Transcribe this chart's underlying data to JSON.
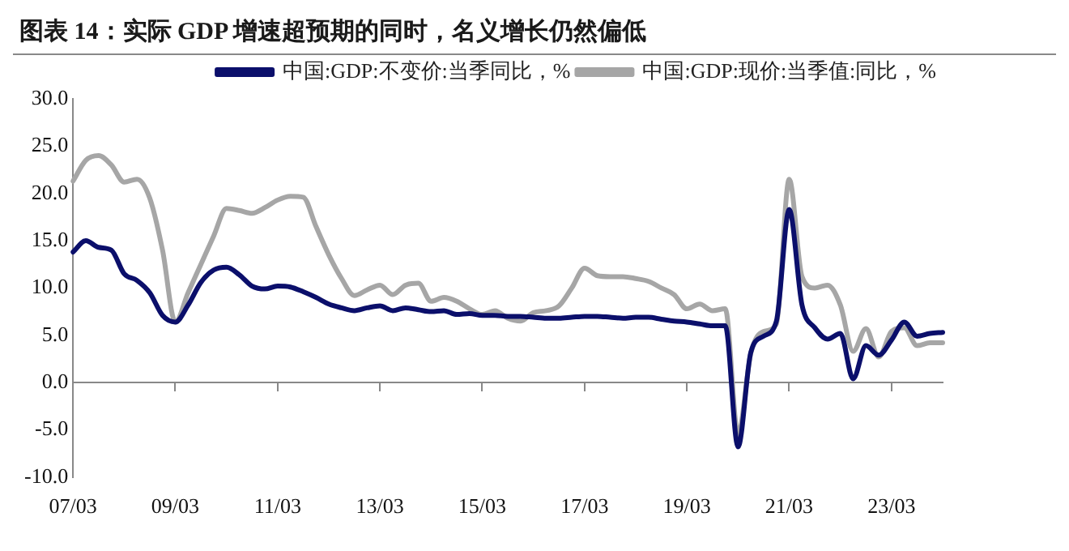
{
  "chart_data": {
    "type": "line",
    "title": "图表 14：实际 GDP 增速超预期的同时，名义增长仍然偏低",
    "categories": [
      "07/03",
      null,
      null,
      null,
      null,
      null,
      null,
      null,
      "09/03",
      null,
      null,
      null,
      null,
      null,
      null,
      null,
      "11/03",
      null,
      null,
      null,
      null,
      null,
      null,
      null,
      "13/03",
      null,
      null,
      null,
      null,
      null,
      null,
      null,
      "15/03",
      null,
      null,
      null,
      null,
      null,
      null,
      null,
      "17/03",
      null,
      null,
      null,
      null,
      null,
      null,
      null,
      "19/03",
      null,
      null,
      null,
      null,
      null,
      null,
      null,
      "21/03",
      null,
      null,
      null,
      null,
      null,
      null,
      null,
      "23/03",
      null,
      null,
      null,
      null
    ],
    "series": [
      {
        "name": "中国:GDP:不变价:当季同比，%",
        "color": "#0b0f6b",
        "values": [
          13.8,
          15.0,
          14.3,
          14.0,
          11.5,
          10.8,
          9.5,
          7.1,
          6.4,
          8.2,
          10.6,
          11.9,
          12.2,
          11.4,
          10.2,
          9.9,
          10.2,
          10.1,
          9.6,
          9.0,
          8.3,
          7.9,
          7.6,
          7.9,
          8.1,
          7.6,
          7.9,
          7.7,
          7.5,
          7.6,
          7.2,
          7.3,
          7.1,
          7.1,
          7.0,
          7.0,
          6.9,
          6.8,
          6.8,
          6.9,
          7.0,
          7.0,
          6.9,
          6.8,
          6.9,
          6.9,
          6.7,
          6.5,
          6.4,
          6.2,
          6.0,
          6.0,
          -6.8,
          3.2,
          4.9,
          6.5,
          18.3,
          8.2,
          5.8,
          4.6,
          5.2,
          0.4,
          3.9,
          2.9,
          4.5,
          6.4,
          4.9,
          5.2,
          5.3
        ]
      },
      {
        "name": "中国:GDP:现价:当季值:同比，%",
        "color": "#a6a6a6",
        "values": [
          21.3,
          23.5,
          24.0,
          23.0,
          21.2,
          21.5,
          19.5,
          14.0,
          6.4,
          9.5,
          12.5,
          15.5,
          18.4,
          18.2,
          17.9,
          18.5,
          19.3,
          19.7,
          19.6,
          16.5,
          13.5,
          11.0,
          9.2,
          9.8,
          10.3,
          9.3,
          10.3,
          10.5,
          8.6,
          9.0,
          8.6,
          7.8,
          7.2,
          7.6,
          6.8,
          6.5,
          7.4,
          7.6,
          8.1,
          10.0,
          12.1,
          11.3,
          11.2,
          11.2,
          11.0,
          10.7,
          10.0,
          9.3,
          7.8,
          8.3,
          7.6,
          7.8,
          -5.5,
          3.1,
          5.4,
          6.2,
          21.5,
          11.2,
          10.0,
          10.3,
          8.2,
          3.3,
          5.7,
          2.7,
          5.4,
          5.8,
          3.9,
          4.2,
          4.2
        ]
      }
    ],
    "ylim": [
      -10,
      30
    ],
    "yticks": [
      {
        "value": -10,
        "label": "-10.0"
      },
      {
        "value": -5,
        "label": "-5.0"
      },
      {
        "value": 0,
        "label": "0.0"
      },
      {
        "value": 5,
        "label": "5.0"
      },
      {
        "value": 10,
        "label": "10.0"
      },
      {
        "value": 15,
        "label": "15.0"
      },
      {
        "value": 20,
        "label": "20.0"
      },
      {
        "value": 25,
        "label": "25.0"
      },
      {
        "value": 30,
        "label": "30.0"
      }
    ],
    "legend": "top right",
    "marker": "none",
    "line_style": "solid"
  }
}
